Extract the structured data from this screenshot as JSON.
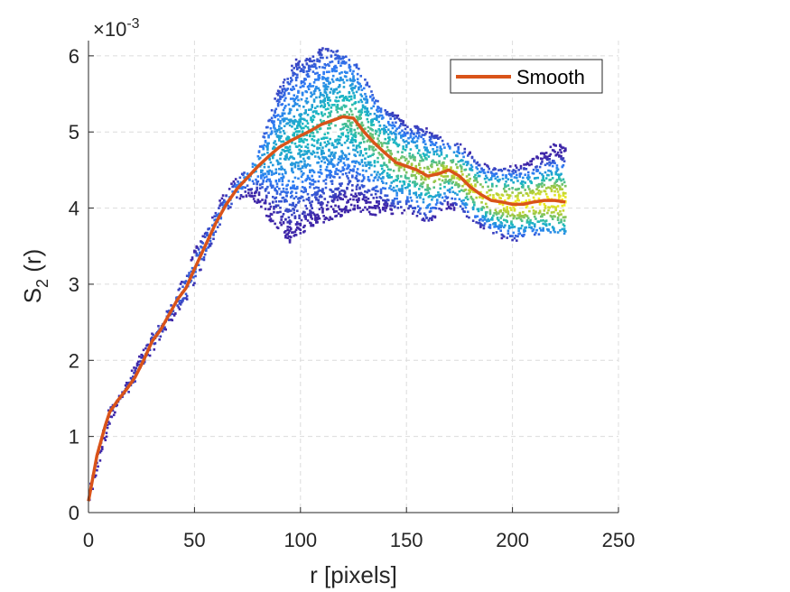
{
  "chart_data": {
    "type": "scatter",
    "xlabel": "r [pixels]",
    "ylabel_main": "S",
    "ylabel_sub": "2",
    "ylabel_tail": " (r)",
    "y_exponent_base": "×10",
    "y_exponent_power": "-3",
    "xlim": [
      0,
      250
    ],
    "ylim": [
      0,
      6.2
    ],
    "xticks": [
      0,
      50,
      100,
      150,
      200,
      250
    ],
    "yticks": [
      0,
      1,
      2,
      3,
      4,
      5,
      6
    ],
    "grid": true,
    "legend_position": "top-right",
    "series": [
      {
        "name": "Smooth",
        "kind": "line",
        "color": "#D95319",
        "x": [
          0,
          2,
          4,
          6,
          8,
          10,
          14,
          18,
          22,
          26,
          30,
          34,
          38,
          42,
          46,
          50,
          55,
          60,
          65,
          70,
          75,
          80,
          85,
          90,
          95,
          100,
          105,
          110,
          115,
          120,
          125,
          130,
          135,
          140,
          145,
          150,
          155,
          160,
          165,
          170,
          175,
          180,
          185,
          190,
          195,
          200,
          205,
          210,
          215,
          220,
          225
        ],
        "y": [
          0.15,
          0.45,
          0.75,
          0.95,
          1.15,
          1.32,
          1.48,
          1.62,
          1.78,
          2.0,
          2.25,
          2.4,
          2.6,
          2.8,
          2.95,
          3.2,
          3.5,
          3.8,
          4.05,
          4.25,
          4.4,
          4.55,
          4.68,
          4.8,
          4.88,
          4.95,
          5.02,
          5.1,
          5.15,
          5.2,
          5.18,
          5.0,
          4.85,
          4.72,
          4.6,
          4.55,
          4.5,
          4.42,
          4.45,
          4.5,
          4.42,
          4.28,
          4.18,
          4.1,
          4.08,
          4.05,
          4.05,
          4.08,
          4.1,
          4.1,
          4.08
        ]
      },
      {
        "name": "",
        "kind": "scatter-band",
        "colormap": "parula",
        "x": [
          0,
          5,
          10,
          15,
          20,
          25,
          30,
          35,
          40,
          45,
          50,
          55,
          60,
          65,
          70,
          75,
          80,
          85,
          90,
          95,
          100,
          105,
          110,
          115,
          120,
          125,
          130,
          135,
          140,
          145,
          150,
          155,
          160,
          165,
          170,
          175,
          180,
          185,
          190,
          195,
          200,
          205,
          210,
          215,
          220,
          225
        ],
        "y_low": [
          0.05,
          0.6,
          1.1,
          1.5,
          1.6,
          1.9,
          2.1,
          2.3,
          2.55,
          2.7,
          3.0,
          3.3,
          3.65,
          3.95,
          4.1,
          4.15,
          4.05,
          3.85,
          3.7,
          3.55,
          3.65,
          3.75,
          3.8,
          3.85,
          3.9,
          3.95,
          3.95,
          3.9,
          3.95,
          3.9,
          3.95,
          3.85,
          3.8,
          3.9,
          4.0,
          3.95,
          3.85,
          3.75,
          3.65,
          3.6,
          3.55,
          3.6,
          3.65,
          3.65,
          3.65,
          3.65
        ],
        "y_high": [
          0.25,
          0.9,
          1.4,
          1.55,
          1.85,
          2.1,
          2.35,
          2.55,
          2.8,
          3.1,
          3.45,
          3.7,
          4.0,
          4.25,
          4.4,
          4.5,
          4.75,
          5.2,
          5.6,
          5.9,
          6.0,
          6.05,
          6.1,
          6.1,
          6.05,
          5.95,
          5.75,
          5.45,
          5.3,
          5.25,
          5.1,
          5.1,
          5.05,
          4.95,
          4.85,
          4.85,
          4.75,
          4.6,
          4.55,
          4.55,
          4.55,
          4.6,
          4.65,
          4.75,
          4.85,
          4.85
        ]
      }
    ]
  }
}
